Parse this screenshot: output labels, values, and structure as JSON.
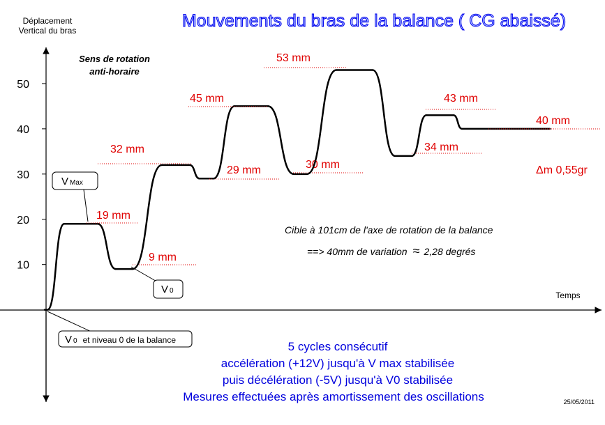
{
  "chart_data": {
    "type": "line",
    "title": "Mouvements du bras de la balance ( CG abaissé)",
    "y_label": [
      "Déplacement",
      "Vertical du bras"
    ],
    "x_label": "Temps",
    "series": [
      {
        "values": [
          0,
          19,
          9,
          32,
          29,
          45,
          30,
          53,
          34,
          43,
          40
        ],
        "value_labels": [
          null,
          "19 mm",
          "9 mm",
          "32 mm",
          "29 mm",
          "45 mm",
          "30 mm",
          "53 mm",
          "34 mm",
          "43 mm",
          "40 mm"
        ],
        "color": "#000000"
      }
    ],
    "ylim": [
      -19,
      58
    ],
    "yticks": [
      10,
      20,
      30,
      40,
      50
    ],
    "rotation": [
      "Sens de rotation",
      "anti-horaire"
    ],
    "callouts": {
      "vmax": {
        "v": "V",
        "sub": "Max"
      },
      "v0": {
        "v": "V",
        "sub": "0"
      },
      "v0_level": {
        "v": "V",
        "sub": "0",
        "rest": "et  niveau 0 de la balance"
      }
    },
    "mass_delta": "Δm 0,55gr",
    "target_note": [
      "Cible à 101cm de l'axe de rotation de la balance",
      "==>  40mm de variation",
      "≈",
      "2,28 degrés"
    ],
    "description": [
      "5 cycles consécutif",
      "accélération (+12V) jusqu'à V max stabilisée",
      "puis décélération (-5V) jusqu'à V0 stabilisée",
      "Mesures effectuées après amortissement des oscillations"
    ],
    "date": "25/05/2011"
  }
}
